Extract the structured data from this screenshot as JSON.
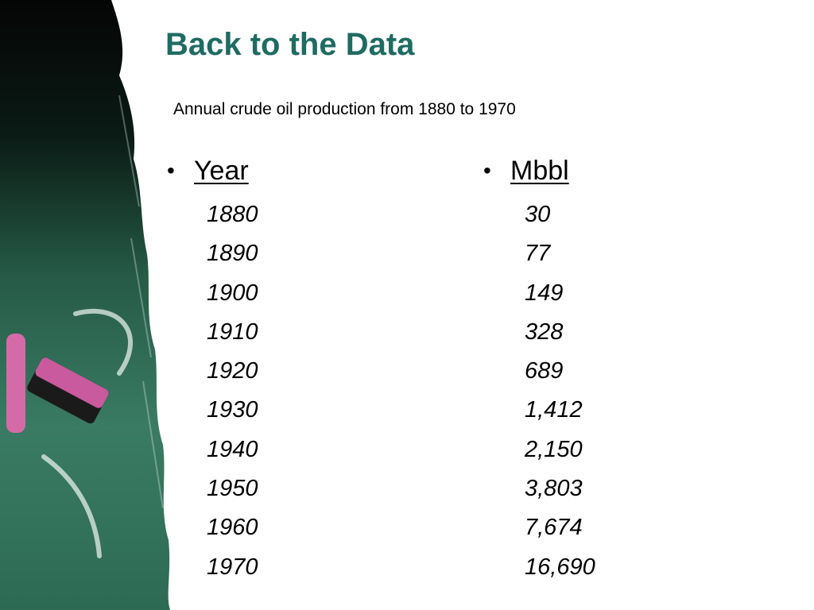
{
  "title": "Back to the Data",
  "subtitle": "Annual crude oil production from 1880 to 1970",
  "bullet": "•",
  "table": {
    "columns": [
      {
        "header": "Year",
        "values": [
          "1880",
          "1890",
          "1900",
          "1910",
          "1920",
          "1930",
          "1940",
          "1950",
          "1960",
          "1970"
        ]
      },
      {
        "header": "Mbbl",
        "values": [
          "30",
          "77",
          "149",
          "328",
          "689",
          "1,412",
          "2,150",
          "3,803",
          "7,674",
          "16,690"
        ]
      }
    ]
  },
  "colors": {
    "title": "#1f6b62",
    "chalkboard": "#2f6e58",
    "chalk": "#d06aa8"
  }
}
